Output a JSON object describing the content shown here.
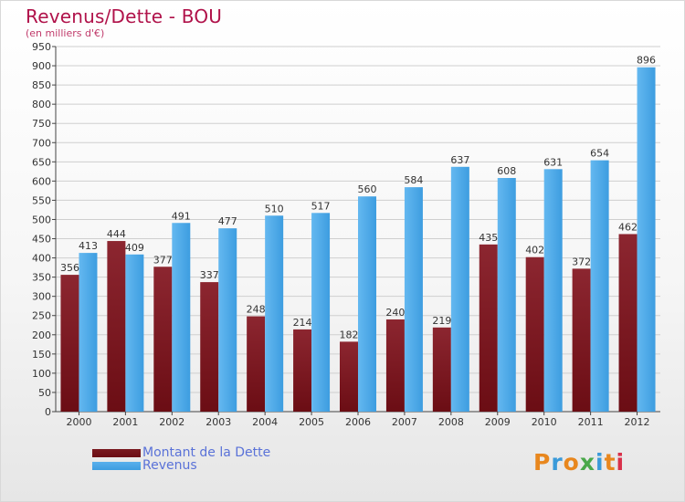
{
  "title": "Revenus/Dette - BOU",
  "subtitle": "(en milliers d'€)",
  "colors": {
    "dette": "#6b0d14",
    "revenus": "#3d9de0",
    "title": "#b0124a"
  },
  "legend": [
    {
      "label": "Montant de la Dette",
      "color": "#6b0d14"
    },
    {
      "label": "Revenus",
      "color": "#3d9de0"
    }
  ],
  "logo": {
    "text": "Proxiti",
    "icon": "proxiti-logo"
  },
  "chart_data": {
    "type": "bar",
    "title": "Revenus/Dette - BOU",
    "subtitle": "(en milliers d'€)",
    "categories": [
      "2000",
      "2001",
      "2002",
      "2003",
      "2004",
      "2005",
      "2006",
      "2007",
      "2008",
      "2009",
      "2010",
      "2011",
      "2012"
    ],
    "series": [
      {
        "name": "Montant de la Dette",
        "values": [
          356,
          444,
          377,
          337,
          248,
          214,
          182,
          240,
          219,
          435,
          402,
          372,
          462
        ]
      },
      {
        "name": "Revenus",
        "values": [
          413,
          409,
          491,
          477,
          510,
          517,
          560,
          584,
          637,
          608,
          631,
          654,
          896
        ]
      }
    ],
    "ylim": [
      0,
      950
    ],
    "yticks": [
      0,
      50,
      100,
      150,
      200,
      250,
      300,
      350,
      400,
      450,
      500,
      550,
      600,
      650,
      700,
      750,
      800,
      850,
      900,
      950
    ],
    "grid": true,
    "legend_position": "bottom-left"
  }
}
